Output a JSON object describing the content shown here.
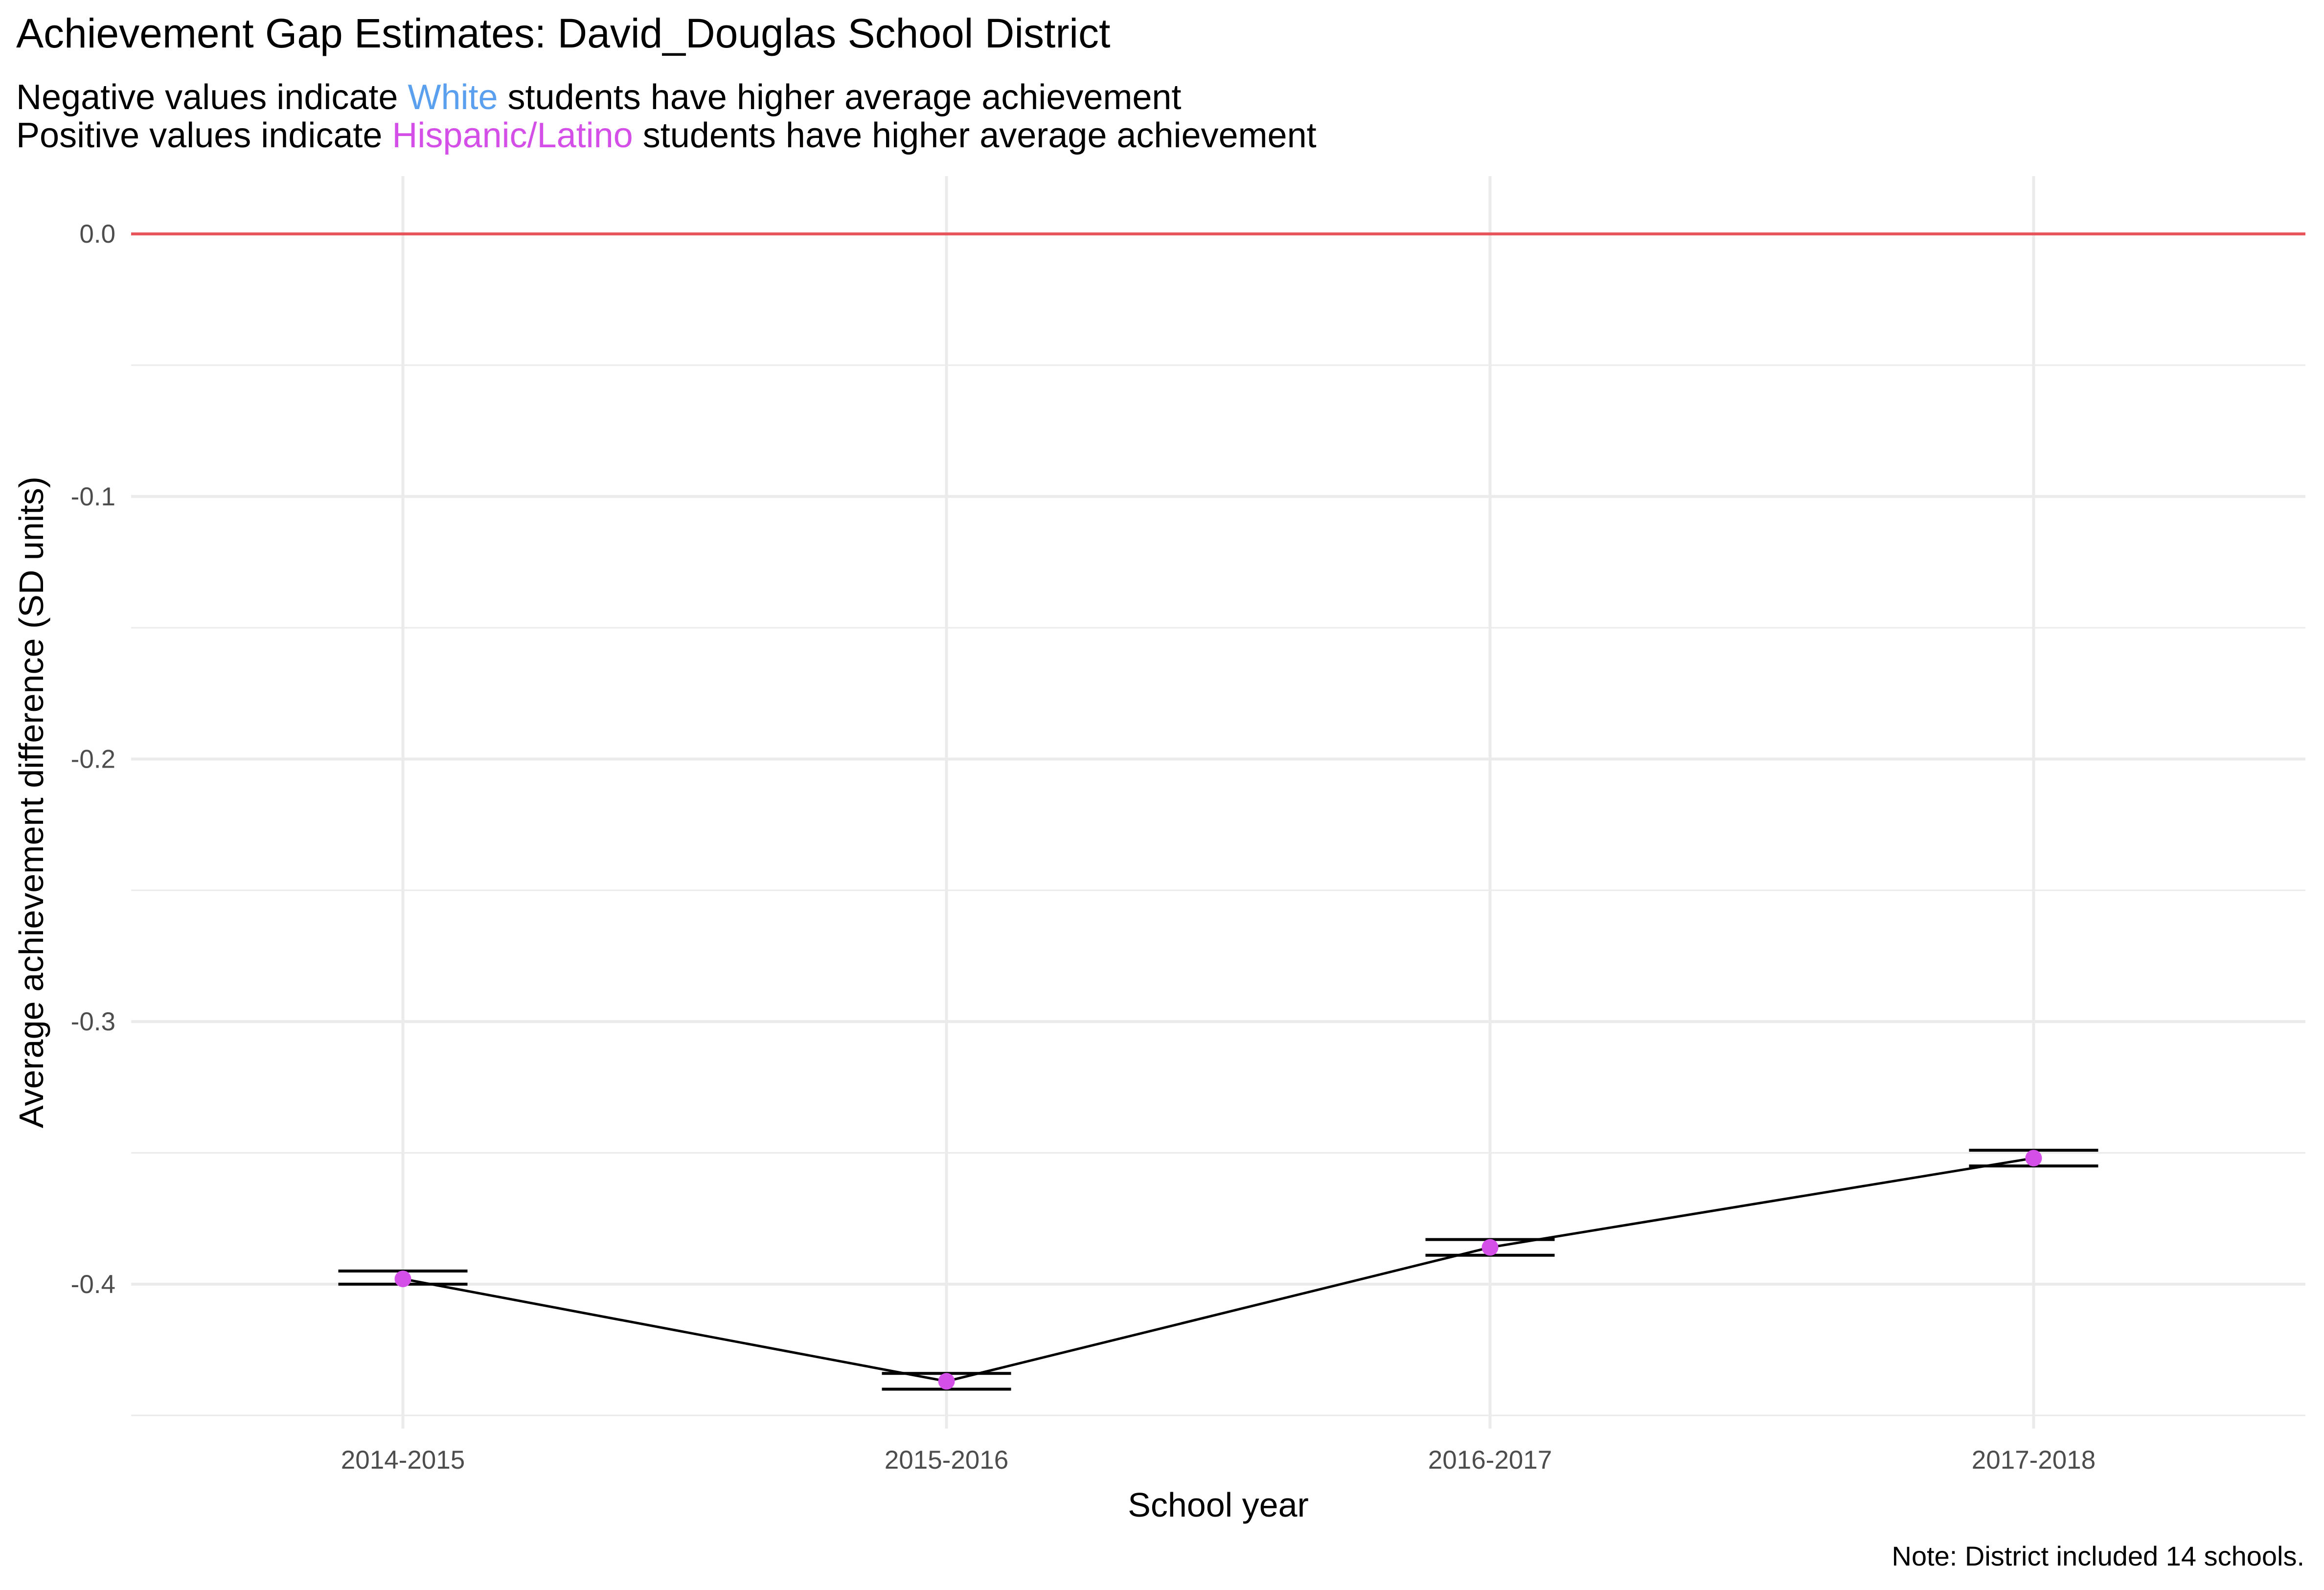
{
  "chart_data": {
    "type": "line",
    "title": "Achievement Gap Estimates: David_Douglas School District",
    "subtitle": {
      "line1": {
        "before": "Negative values indicate ",
        "highlight": "White",
        "after": " students have higher average achievement"
      },
      "line2": {
        "before": "Positive values indicate ",
        "highlight": "Hispanic/Latino",
        "after": " students have higher average achievement"
      }
    },
    "caption": "Note: District included 14 schools.",
    "xlabel": "School year",
    "ylabel": "Average achievement difference (SD units)",
    "categories": [
      "2014-2015",
      "2015-2016",
      "2016-2017",
      "2017-2018"
    ],
    "values": [
      -0.398,
      -0.437,
      -0.386,
      -0.352
    ],
    "error_low": [
      -0.4,
      -0.44,
      -0.389,
      -0.355
    ],
    "error_high": [
      -0.395,
      -0.434,
      -0.383,
      -0.349
    ],
    "yticks": [
      0.0,
      -0.1,
      -0.2,
      -0.3,
      -0.4
    ],
    "ytick_labels": [
      "0.0",
      "-0.1",
      "-0.2",
      "-0.3",
      "-0.4"
    ],
    "ylim": [
      -0.455,
      0.022
    ],
    "reference_line": 0,
    "grid": true,
    "legend": "none",
    "colors": {
      "point": "#d44ee8",
      "line": "#000000",
      "reference_line": "#e8545a",
      "white_highlight": "#5aa0ee",
      "hispanic_highlight": "#d44ee8",
      "grid": "#ebebeb"
    }
  }
}
